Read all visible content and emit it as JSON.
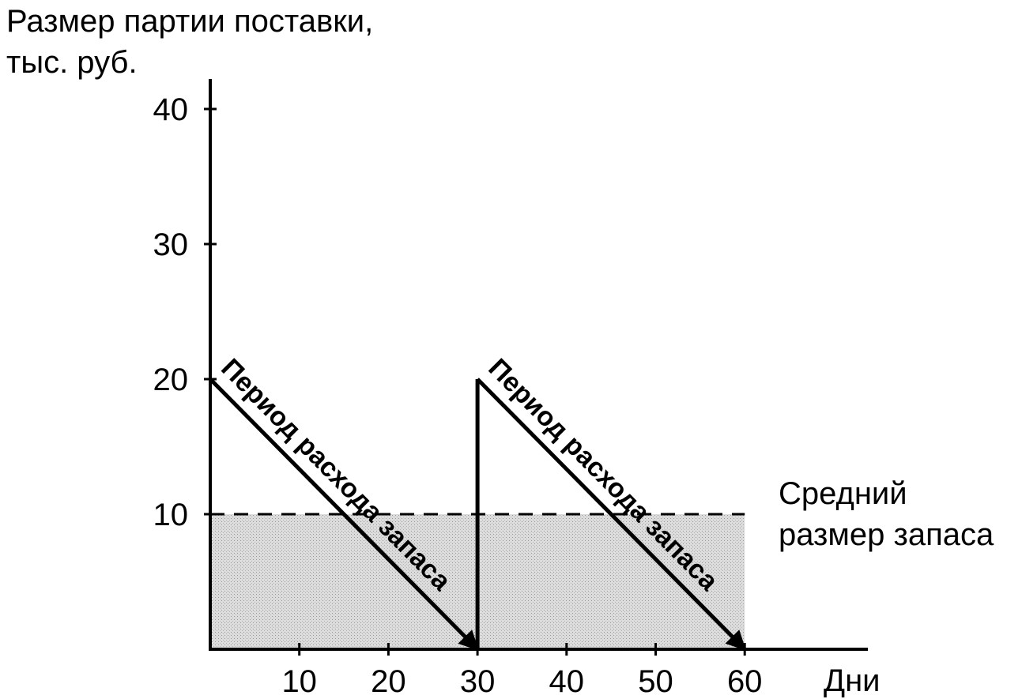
{
  "chart_data": {
    "type": "line",
    "ylabel_lines": [
      "Размер партии поставки,",
      "тыс. руб."
    ],
    "xlabel": "Дни",
    "xlim": [
      0,
      70
    ],
    "ylim": [
      0,
      40
    ],
    "x_ticks": [
      10,
      20,
      30,
      40,
      50,
      60
    ],
    "y_ticks": [
      10,
      20,
      30,
      40
    ],
    "x_tick_labels": [
      "10",
      "20",
      "30",
      "40",
      "50",
      "60"
    ],
    "y_tick_labels": [
      "10",
      "20",
      "30",
      "40"
    ],
    "series": [
      {
        "x": [
          0,
          30,
          30,
          60
        ],
        "y": [
          20,
          0,
          20,
          0
        ]
      }
    ],
    "average_level": {
      "value": 10,
      "range": [
        0,
        60
      ],
      "label_lines": [
        "Средний",
        "размер запаса"
      ],
      "style": "dashed-with-shaded-area"
    },
    "annotations": [
      {
        "text": "Период расхода запаса",
        "from": [
          0,
          20
        ],
        "to": [
          30,
          0
        ]
      },
      {
        "text": "Период расхода запаса",
        "from": [
          30,
          20
        ],
        "to": [
          60,
          0
        ]
      }
    ],
    "grid": false,
    "colors": {
      "line": "#000000",
      "shade": "#d9d9d9"
    }
  }
}
